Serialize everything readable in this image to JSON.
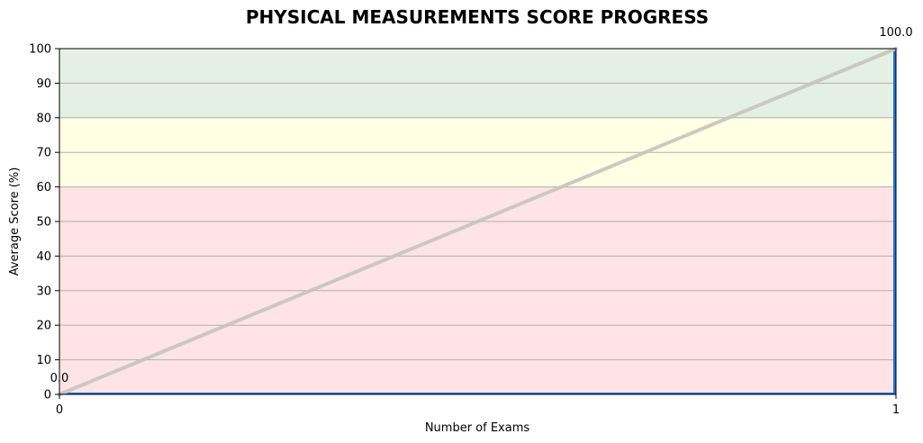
{
  "chart_data": {
    "type": "line",
    "title": "PHYSICAL MEASUREMENTS SCORE PROGRESS",
    "xlabel": "Number of Exams",
    "ylabel": "Average Score (%)",
    "xlim": [
      0,
      1
    ],
    "ylim": [
      0,
      100
    ],
    "x_ticks": [
      "0",
      "1"
    ],
    "y_ticks": [
      "0",
      "10",
      "20",
      "30",
      "40",
      "50",
      "60",
      "70",
      "80",
      "90",
      "100"
    ],
    "grid": "horizontal",
    "bands": [
      {
        "from": 0,
        "to": 60,
        "color": "#ffe3e5"
      },
      {
        "from": 60,
        "to": 80,
        "color": "#ffffe3"
      },
      {
        "from": 80,
        "to": 100,
        "color": "#e5f0e5"
      }
    ],
    "series": [
      {
        "x": [
          0,
          1
        ],
        "values": [
          0.0,
          100.0
        ],
        "color": "#c4c4bc",
        "data_labels": [
          "0.0",
          "100.0"
        ]
      }
    ],
    "highlight_bars": {
      "x": [
        0,
        1
      ],
      "values": [
        0.5,
        100
      ],
      "color": "#1f6fd1"
    }
  }
}
